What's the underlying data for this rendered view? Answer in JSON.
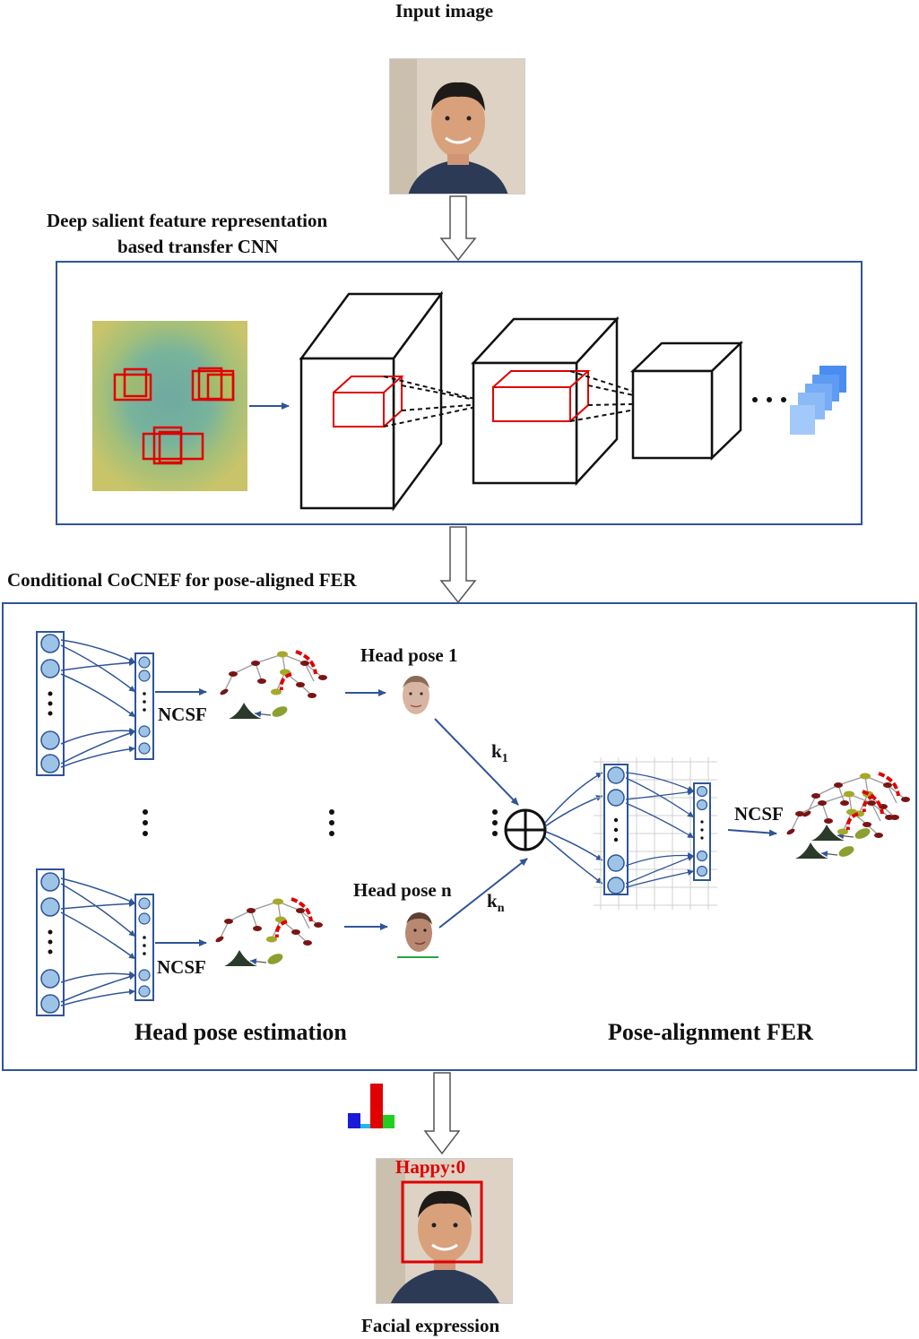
{
  "title_input": "Input image",
  "section1": {
    "title_line1": "Deep salient feature representation",
    "title_line2": "based transfer CNN"
  },
  "section2": {
    "title": "Conditional CoCNEF for pose-aligned FER",
    "head_pose_1": "Head pose 1",
    "head_pose_n": "Head pose n",
    "ncsf": "NCSF",
    "k1_base": "k",
    "k1_sub": "1",
    "kn_base": "k",
    "kn_sub": "n",
    "caption_left": "Head pose estimation",
    "caption_right": "Pose-alignment FER"
  },
  "output": {
    "prediction_label": "Happy:0",
    "caption": "Facial expression"
  },
  "colors": {
    "frame": "#2f5597",
    "arrow": "#2f5597",
    "node_fill": "#9dc3e6",
    "highlight_box": "#e00000"
  }
}
